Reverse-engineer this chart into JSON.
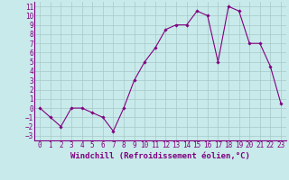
{
  "x": [
    0,
    1,
    2,
    3,
    4,
    5,
    6,
    7,
    8,
    9,
    10,
    11,
    12,
    13,
    14,
    15,
    16,
    17,
    18,
    19,
    20,
    21,
    22,
    23
  ],
  "y": [
    0,
    -1,
    -2,
    0,
    0,
    -0.5,
    -1,
    -2.5,
    0,
    3,
    5,
    6.5,
    8.5,
    9,
    9,
    10.5,
    10,
    5,
    11,
    10.5,
    7,
    7,
    4.5,
    0.5
  ],
  "line_color": "#800080",
  "marker": "D",
  "marker_size": 1.8,
  "bg_color": "#c8eaea",
  "grid_color": "#a8c8c8",
  "xlabel": "Windchill (Refroidissement éolien,°C)",
  "xlabel_fontsize": 6.5,
  "xlabel_color": "#800080",
  "tick_color": "#800080",
  "spine_color": "#800080",
  "xlim": [
    -0.5,
    23.5
  ],
  "ylim": [
    -3.5,
    11.5
  ],
  "xticks": [
    0,
    1,
    2,
    3,
    4,
    5,
    6,
    7,
    8,
    9,
    10,
    11,
    12,
    13,
    14,
    15,
    16,
    17,
    18,
    19,
    20,
    21,
    22,
    23
  ],
  "yticks": [
    -3,
    -2,
    -1,
    0,
    1,
    2,
    3,
    4,
    5,
    6,
    7,
    8,
    9,
    10,
    11
  ],
  "tick_fontsize": 5.5
}
